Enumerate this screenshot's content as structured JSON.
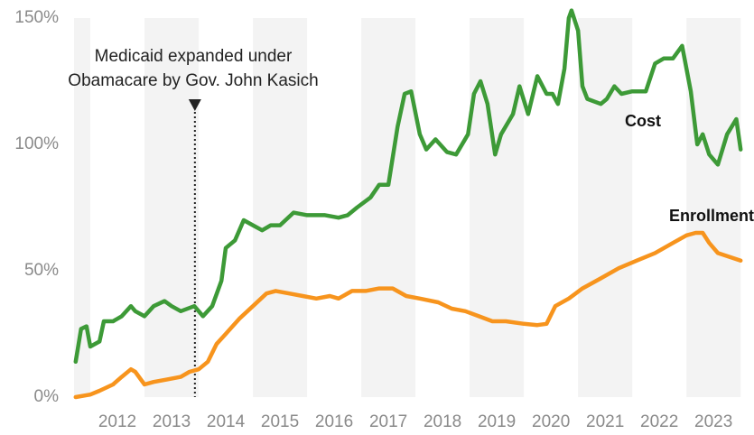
{
  "chart_data": {
    "type": "line",
    "xlim": [
      2011.7,
      2024.08
    ],
    "xticks": [
      2012,
      2013,
      2014,
      2015,
      2016,
      2017,
      2018,
      2019,
      2020,
      2021,
      2022,
      2023
    ],
    "ylim": [
      0,
      150
    ],
    "yticks": [
      {
        "value": 0,
        "label": "0%"
      },
      {
        "value": 50,
        "label": "50%"
      },
      {
        "value": 100,
        "label": "100%"
      },
      {
        "value": 150,
        "label": "150%"
      }
    ],
    "annotation": {
      "lines": [
        "Medicaid expanded under",
        "Obamacare by Gov. John Kasich"
      ],
      "x": 2013.93
    },
    "series": [
      {
        "name": "Cost",
        "color": "#3d9a37",
        "x": [
          2011.73,
          2011.83,
          2011.93,
          2012.0,
          2012.17,
          2012.25,
          2012.42,
          2012.58,
          2012.75,
          2012.83,
          2013.0,
          2013.17,
          2013.37,
          2013.5,
          2013.67,
          2013.92,
          2014.08,
          2014.25,
          2014.42,
          2014.5,
          2014.67,
          2014.83,
          2015.0,
          2015.17,
          2015.33,
          2015.5,
          2015.75,
          2016.0,
          2016.33,
          2016.58,
          2016.75,
          2016.92,
          2017.17,
          2017.33,
          2017.5,
          2017.67,
          2017.8,
          2017.92,
          2018.08,
          2018.2,
          2018.37,
          2018.58,
          2018.75,
          2018.97,
          2019.08,
          2019.2,
          2019.33,
          2019.47,
          2019.58,
          2019.8,
          2019.92,
          2020.08,
          2020.25,
          2020.42,
          2020.53,
          2020.63,
          2020.75,
          2020.83,
          2020.88,
          2021.0,
          2021.08,
          2021.17,
          2021.42,
          2021.53,
          2021.67,
          2021.8,
          2022.0,
          2022.25,
          2022.42,
          2022.58,
          2022.75,
          2022.92,
          2023.08,
          2023.2,
          2023.3,
          2023.42,
          2023.58,
          2023.75,
          2023.92,
          2024.0
        ],
        "values": [
          14,
          27,
          28,
          20,
          22,
          30,
          30,
          32,
          36,
          34,
          32,
          36,
          38,
          36,
          34,
          36,
          32,
          36,
          46,
          59,
          62,
          70,
          68,
          66,
          68,
          68,
          73,
          72,
          72,
          71,
          72,
          75,
          79,
          84,
          84,
          107,
          120,
          121,
          104,
          98,
          102,
          97,
          96,
          104,
          120,
          125,
          116,
          96,
          104,
          112,
          123,
          112,
          127,
          120,
          120,
          116,
          130,
          150,
          153,
          145,
          123,
          118,
          116,
          118,
          123,
          120,
          121,
          121,
          132,
          134,
          134,
          139,
          121,
          100,
          104,
          96,
          92,
          104,
          110,
          98
        ]
      },
      {
        "name": "Enrollment",
        "color": "#f7941d",
        "x": [
          2011.73,
          2012.0,
          2012.17,
          2012.42,
          2012.58,
          2012.75,
          2012.83,
          2013.0,
          2013.17,
          2013.42,
          2013.67,
          2013.83,
          2014.0,
          2014.17,
          2014.33,
          2014.5,
          2014.75,
          2015.0,
          2015.25,
          2015.42,
          2015.67,
          2015.92,
          2016.17,
          2016.42,
          2016.58,
          2016.83,
          2017.08,
          2017.33,
          2017.58,
          2017.83,
          2018.08,
          2018.42,
          2018.67,
          2018.92,
          2019.17,
          2019.42,
          2019.67,
          2020.0,
          2020.25,
          2020.42,
          2020.58,
          2020.83,
          2021.08,
          2021.42,
          2021.75,
          2022.08,
          2022.42,
          2022.75,
          2023.0,
          2023.17,
          2023.3,
          2023.42,
          2023.58,
          2024.0
        ],
        "values": [
          0,
          1,
          2.5,
          5,
          8,
          11,
          10,
          5,
          6,
          7,
          8,
          10,
          11,
          14,
          21,
          25,
          31,
          36,
          41,
          42,
          41,
          40,
          39,
          40,
          39,
          42,
          42,
          43,
          43,
          40,
          39,
          37.5,
          35,
          34,
          32,
          30,
          30,
          29,
          28.5,
          29,
          36,
          39,
          43,
          47,
          51,
          54,
          57,
          61,
          64,
          65,
          65,
          61,
          57,
          54
        ]
      }
    ]
  }
}
